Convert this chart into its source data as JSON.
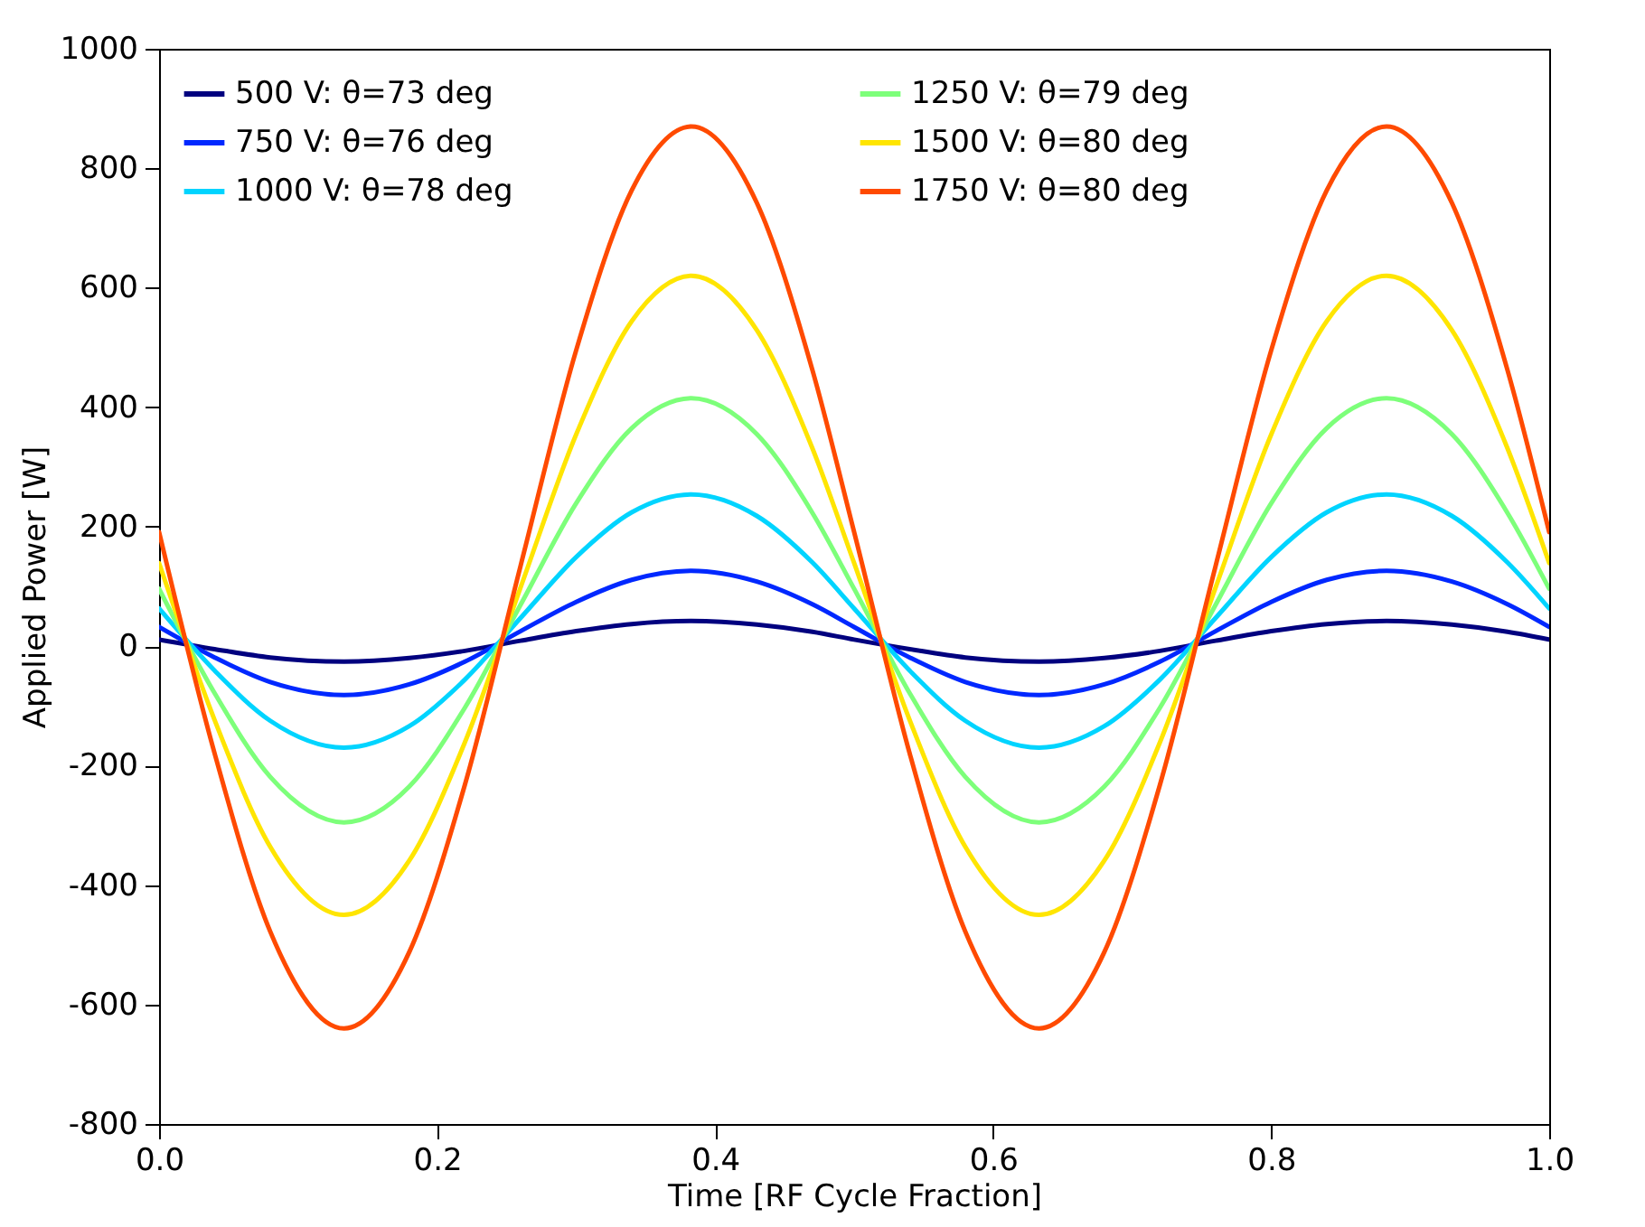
{
  "chart_data": {
    "type": "line",
    "xlabel": "Time [RF Cycle Fraction]",
    "ylabel": "Applied Power [W]",
    "x": [
      0,
      0.04,
      0.08,
      0.133,
      0.18,
      0.22,
      0.26,
      0.3,
      0.34,
      0.383,
      0.43,
      0.47,
      0.5,
      0.54,
      0.58,
      0.633,
      0.68,
      0.72,
      0.76,
      0.8,
      0.84,
      0.883,
      0.93,
      0.97,
      1.0
    ],
    "series": [
      {
        "name": "500 V: θ=73 deg",
        "color": "#00007f",
        "values": [
          11,
          -5,
          -19,
          -26,
          -20,
          -8,
          9,
          25,
          37,
          42,
          36,
          24,
          11,
          -5,
          -19,
          -26,
          -20,
          -8,
          9,
          25,
          37,
          42,
          36,
          24,
          11
        ]
      },
      {
        "name": "750 V: θ=76 deg",
        "color": "#0028ff",
        "values": [
          32,
          -19,
          -60,
          -82,
          -64,
          -26,
          25,
          74,
          111,
          126,
          108,
          70,
          32,
          -19,
          -60,
          -82,
          -64,
          -26,
          25,
          74,
          111,
          126,
          108,
          70,
          32
        ]
      },
      {
        "name": "1000 V: θ=78 deg",
        "color": "#00d4ff",
        "values": [
          63,
          -41,
          -125,
          -170,
          -134,
          -56,
          47,
          149,
          224,
          254,
          218,
          140,
          63,
          -41,
          -125,
          -170,
          -134,
          -56,
          47,
          149,
          224,
          254,
          218,
          140,
          63
        ]
      },
      {
        "name": "1250 V: θ=79 deg",
        "color": "#7dff7a",
        "values": [
          96,
          -79,
          -219,
          -295,
          -235,
          -103,
          69,
          239,
          365,
          415,
          355,
          223,
          96,
          -79,
          -219,
          -295,
          -235,
          -103,
          69,
          239,
          365,
          415,
          355,
          223,
          96
        ]
      },
      {
        "name": "1500 V: θ=80 deg",
        "color": "#ffe500",
        "values": [
          139,
          -124,
          -336,
          -450,
          -359,
          -161,
          98,
          354,
          544,
          620,
          529,
          331,
          139,
          -124,
          -336,
          -450,
          -359,
          -161,
          98,
          354,
          544,
          620,
          529,
          331,
          139
        ]
      },
      {
        "name": "1750 V: θ=80 deg",
        "color": "#ff4a00",
        "values": [
          191,
          -180,
          -478,
          -640,
          -512,
          -232,
          134,
          495,
          763,
          870,
          742,
          462,
          191,
          -180,
          -478,
          -640,
          -512,
          -232,
          134,
          495,
          763,
          870,
          742,
          462,
          191
        ]
      }
    ],
    "xlim": [
      0,
      1
    ],
    "ylim": [
      -800,
      1000
    ],
    "xticks": [
      {
        "value": 0,
        "label": "0.0"
      },
      {
        "value": 0.2,
        "label": "0.2"
      },
      {
        "value": 0.4,
        "label": "0.4"
      },
      {
        "value": 0.6,
        "label": "0.6"
      },
      {
        "value": 0.8,
        "label": "0.8"
      },
      {
        "value": 1,
        "label": "1.0"
      }
    ],
    "yticks": [
      -800,
      -600,
      -400,
      -200,
      0,
      200,
      400,
      600,
      800,
      1000
    ],
    "legend": "top left"
  }
}
